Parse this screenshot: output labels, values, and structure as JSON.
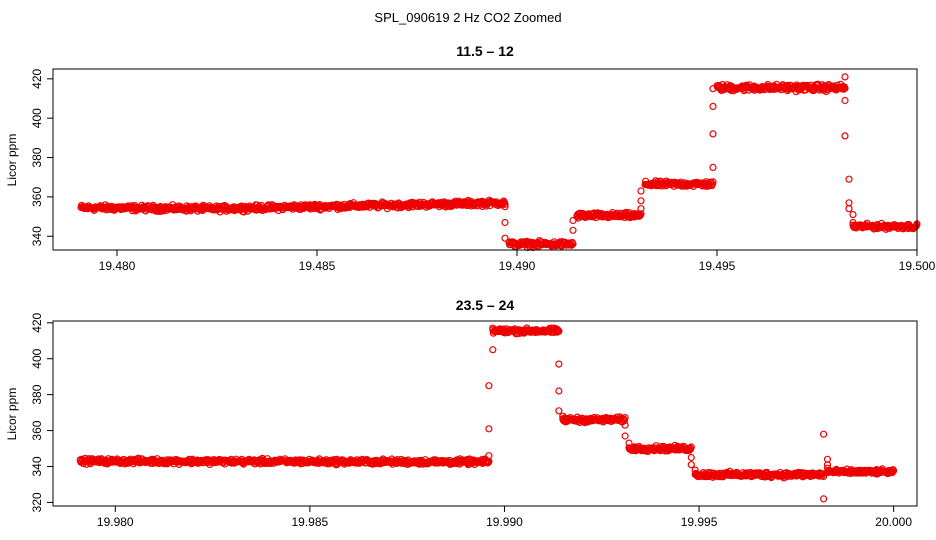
{
  "figure": {
    "title": "SPL_090619  2 Hz CO2 Zoomed",
    "point_color": "#ee0000",
    "axis_color": "#000000"
  },
  "chart_data": [
    {
      "type": "scatter",
      "title": "11.5 – 12",
      "xlabel": "",
      "ylabel": "Licor ppm",
      "xlim": [
        19.4784,
        19.5
      ],
      "ylim": [
        333,
        425
      ],
      "xticks": [
        19.48,
        19.485,
        19.49,
        19.495,
        19.5
      ],
      "xtick_labels": [
        "19.480",
        "19.485",
        "19.490",
        "19.495",
        "19.500"
      ],
      "yticks": [
        340,
        360,
        380,
        400,
        420
      ],
      "ytick_labels": [
        "340",
        "360",
        "380",
        "400",
        "420"
      ],
      "x_range": [
        19.4791,
        19.5
      ],
      "segments": [
        {
          "x0": 19.4791,
          "x1": 19.4825,
          "y0": 354.5,
          "y1": 354,
          "noise": 1.2
        },
        {
          "x0": 19.4825,
          "x1": 19.4897,
          "y0": 354,
          "y1": 357,
          "noise": 1.2
        },
        {
          "x0": 19.4898,
          "x1": 19.4914,
          "y0": 336,
          "y1": 336,
          "noise": 1.2
        },
        {
          "x0": 19.4915,
          "x1": 19.4931,
          "y0": 350.5,
          "y1": 350.5,
          "noise": 1.2
        },
        {
          "x0": 19.4932,
          "x1": 19.4949,
          "y0": 366.5,
          "y1": 366.5,
          "noise": 1.2
        },
        {
          "x0": 19.495,
          "x1": 19.4982,
          "y0": 415.5,
          "y1": 415.5,
          "noise": 1.4
        },
        {
          "x0": 19.4984,
          "x1": 19.5,
          "y0": 345,
          "y1": 345,
          "noise": 1.1
        }
      ],
      "transition_points": [
        [
          19.4897,
          355
        ],
        [
          19.4897,
          347
        ],
        [
          19.4897,
          339
        ],
        [
          19.4898,
          337
        ],
        [
          19.4914,
          343
        ],
        [
          19.4914,
          348
        ],
        [
          19.4915,
          350
        ],
        [
          19.4931,
          354
        ],
        [
          19.4931,
          358
        ],
        [
          19.4931,
          363
        ],
        [
          19.4949,
          375
        ],
        [
          19.4949,
          392
        ],
        [
          19.4949,
          406
        ],
        [
          19.4949,
          415
        ],
        [
          19.4982,
          421
        ],
        [
          19.4982,
          409
        ],
        [
          19.4982,
          391
        ],
        [
          19.4983,
          369
        ],
        [
          19.4983,
          357
        ],
        [
          19.4983,
          354
        ],
        [
          19.4984,
          351
        ],
        [
          19.4984,
          347
        ]
      ]
    },
    {
      "type": "scatter",
      "title": "23.5 – 24",
      "xlabel": "",
      "ylabel": "Licor ppm",
      "xlim": [
        19.9784,
        20.0006
      ],
      "ylim": [
        318,
        421
      ],
      "xticks": [
        19.98,
        19.985,
        19.99,
        19.995,
        20.0
      ],
      "xtick_labels": [
        "19.980",
        "19.985",
        "19.990",
        "19.995",
        "20.000"
      ],
      "yticks": [
        320,
        340,
        360,
        380,
        400,
        420
      ],
      "ytick_labels": [
        "320",
        "340",
        "360",
        "380",
        "400",
        "420"
      ],
      "x_range": [
        19.9791,
        20.0
      ],
      "segments": [
        {
          "x0": 19.9791,
          "x1": 19.9896,
          "y0": 343,
          "y1": 342.5,
          "noise": 1.2
        },
        {
          "x0": 19.9897,
          "x1": 19.9914,
          "y0": 415.5,
          "y1": 415.5,
          "noise": 1.2
        },
        {
          "x0": 19.9915,
          "x1": 19.9931,
          "y0": 366,
          "y1": 366,
          "noise": 1.2
        },
        {
          "x0": 19.9932,
          "x1": 19.9948,
          "y0": 350,
          "y1": 350,
          "noise": 1.2
        },
        {
          "x0": 19.9949,
          "x1": 19.9982,
          "y0": 335.5,
          "y1": 335.5,
          "noise": 1.3
        },
        {
          "x0": 19.9983,
          "x1": 20.0,
          "y0": 337,
          "y1": 337,
          "noise": 1.1
        }
      ],
      "transition_points": [
        [
          19.9896,
          346
        ],
        [
          19.9896,
          361
        ],
        [
          19.9896,
          385
        ],
        [
          19.9897,
          405
        ],
        [
          19.9897,
          417
        ],
        [
          19.9914,
          397
        ],
        [
          19.9914,
          382
        ],
        [
          19.9914,
          371
        ],
        [
          19.9915,
          368
        ],
        [
          19.9931,
          363
        ],
        [
          19.9931,
          357
        ],
        [
          19.9932,
          353
        ],
        [
          19.9948,
          345
        ],
        [
          19.9948,
          341
        ],
        [
          19.9949,
          338
        ],
        [
          19.9982,
          322
        ],
        [
          19.9982,
          358
        ],
        [
          19.9983,
          344
        ],
        [
          19.9983,
          341
        ],
        [
          19.9983,
          339
        ]
      ]
    }
  ]
}
